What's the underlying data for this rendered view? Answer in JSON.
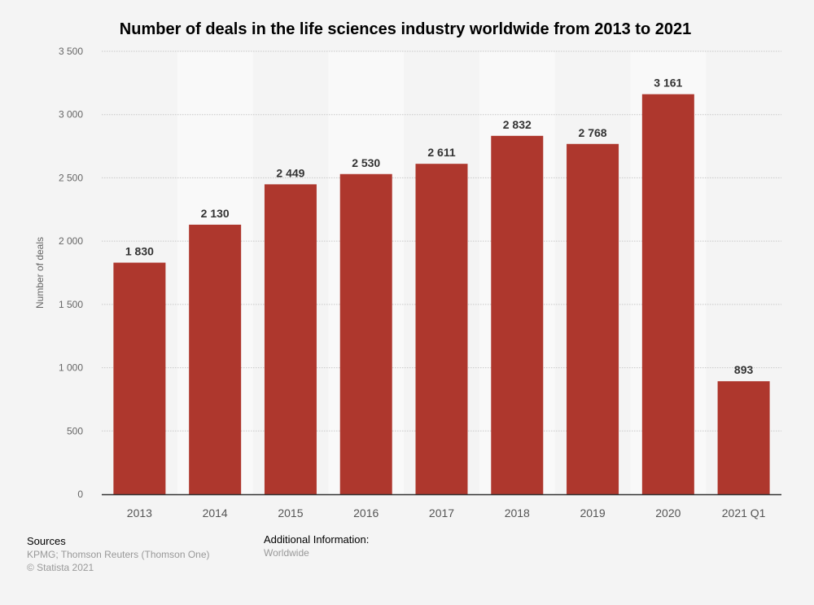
{
  "chart_data": {
    "type": "bar",
    "title": "Number of deals in the life sciences industry worldwide from 2013 to 2021",
    "xlabel": "",
    "ylabel": "Number of deals",
    "categories": [
      "2013",
      "2014",
      "2015",
      "2016",
      "2017",
      "2018",
      "2019",
      "2020",
      "2021 Q1"
    ],
    "values": [
      1830,
      2130,
      2449,
      2530,
      2611,
      2832,
      2768,
      3161,
      893
    ],
    "value_labels": [
      "1 830",
      "2 130",
      "2 449",
      "2 530",
      "2 611",
      "2 832",
      "2 768",
      "3 161",
      "893"
    ],
    "ylim": [
      0,
      3500
    ],
    "yticks": [
      0,
      500,
      1000,
      1500,
      2000,
      2500,
      3000,
      3500
    ],
    "ytick_labels": [
      "0",
      "500",
      "1 000",
      "1 500",
      "2 000",
      "2 500",
      "3 000",
      "3 500"
    ],
    "grid": true,
    "bar_color": "#ae372d"
  },
  "footer": {
    "sources_heading": "Sources",
    "sources_text": "KPMG; Thomson Reuters (Thomson One)",
    "copyright": "© Statista 2021",
    "additional_heading": "Additional Information:",
    "additional_text": "Worldwide"
  }
}
